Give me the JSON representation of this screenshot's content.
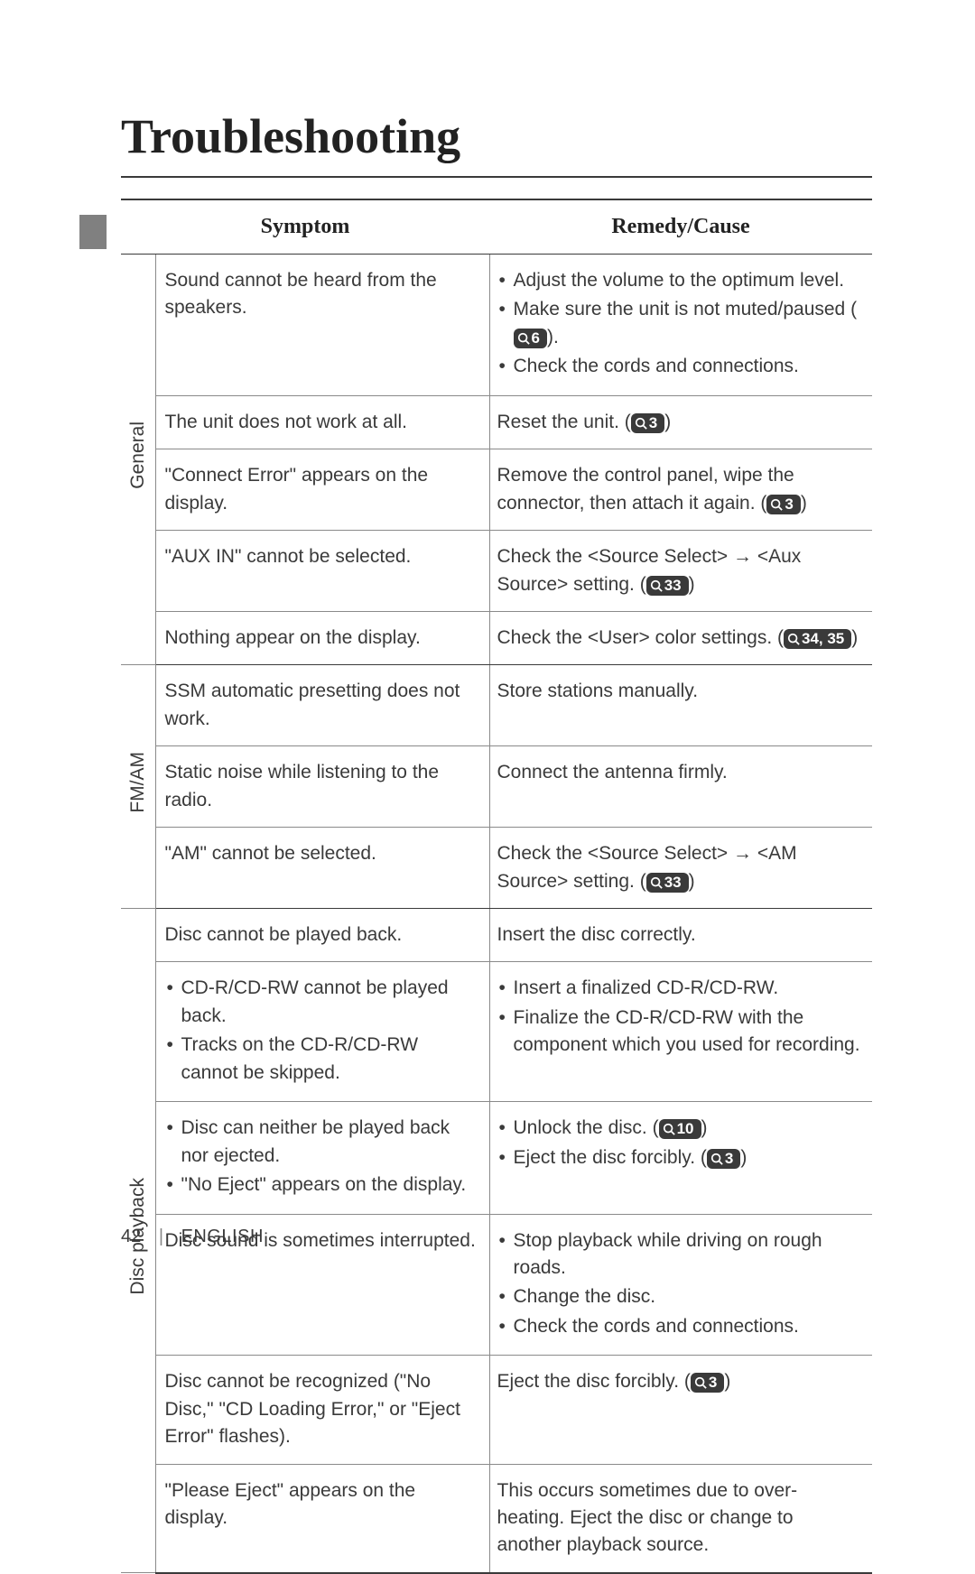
{
  "title": "Troubleshooting",
  "columns": {
    "symptom": "Symptom",
    "remedy": "Remedy/Cause"
  },
  "arrow_glyph": "→",
  "footer": {
    "page": "42",
    "sep": "|",
    "lang": "ENGLISH"
  },
  "groups": [
    {
      "category": "General",
      "rows": [
        {
          "symptom_text": "Sound cannot be heard from the speakers.",
          "remedy_items": [
            {
              "type": "plain",
              "text": "Adjust the volume to the optimum level."
            },
            {
              "type": "icon_after",
              "pre": "Make sure the unit is not muted/paused (",
              "ref": "6",
              "post": ")."
            },
            {
              "type": "plain",
              "text": "Check the cords and connections."
            }
          ]
        },
        {
          "symptom_text": "The unit does not work at all.",
          "remedy_line": {
            "pre": "Reset the unit. (",
            "ref": "3",
            "post": ")"
          }
        },
        {
          "symptom_text": "\"Connect Error\" appears on the display.",
          "remedy_line": {
            "pre": "Remove the control panel, wipe the connector, then attach it again. (",
            "ref": "3",
            "post": ")"
          }
        },
        {
          "symptom_text": "\"AUX IN\" cannot be selected.",
          "remedy_arrow": {
            "pre": "Check the <Source Select> ",
            "mid": " <Aux Source> setting. (",
            "ref": "33",
            "post": ")"
          }
        },
        {
          "symptom_text": "Nothing appear on the display.",
          "remedy_line": {
            "pre": "Check the <User> color settings. (",
            "ref": "34, 35",
            "post": ")"
          }
        }
      ]
    },
    {
      "category": "FM/AM",
      "rows": [
        {
          "symptom_text": "SSM automatic presetting does not work.",
          "remedy_plain": "Store stations manually."
        },
        {
          "symptom_text": "Static noise while listening to the radio.",
          "remedy_plain": "Connect the antenna firmly."
        },
        {
          "symptom_text": "\"AM\" cannot be selected.",
          "remedy_arrow": {
            "pre": "Check the <Source Select> ",
            "mid": " <AM Source> setting. (",
            "ref": "33",
            "post": ")"
          }
        }
      ]
    },
    {
      "category": "Disc playback",
      "rows": [
        {
          "symptom_text": "Disc cannot be played back.",
          "remedy_plain": "Insert the disc correctly."
        },
        {
          "symptom_items": [
            "CD-R/CD-RW cannot be played back.",
            "Tracks on the CD-R/CD-RW cannot be skipped."
          ],
          "remedy_items_plain": [
            "Insert a finalized CD-R/CD-RW.",
            "Finalize the CD-R/CD-RW with the component which you used for recording."
          ]
        },
        {
          "symptom_items": [
            "Disc can neither be played back nor ejected.",
            "\"No Eject\" appears on the display."
          ],
          "remedy_items": [
            {
              "type": "icon_after",
              "pre": "Unlock the disc. (",
              "ref": "10",
              "post": ")"
            },
            {
              "type": "icon_after",
              "pre": "Eject the disc forcibly. (",
              "ref": "3",
              "post": ")"
            }
          ]
        },
        {
          "symptom_text": "Disc sound is sometimes interrupted.",
          "remedy_items_plain": [
            "Stop playback while driving on rough roads.",
            "Change the disc.",
            "Check the cords and connections."
          ]
        },
        {
          "symptom_text": "Disc cannot be recognized (\"No Disc,\" \"CD Loading Error,\" or \"Eject Error\" flashes).",
          "remedy_line": {
            "pre": "Eject the disc forcibly. (",
            "ref": "3",
            "post": ")"
          }
        },
        {
          "symptom_text": "\"Please Eject\" appears on the display.",
          "remedy_plain": "This occurs sometimes due to over-heating. Eject the disc or change to another playback source."
        }
      ]
    }
  ]
}
